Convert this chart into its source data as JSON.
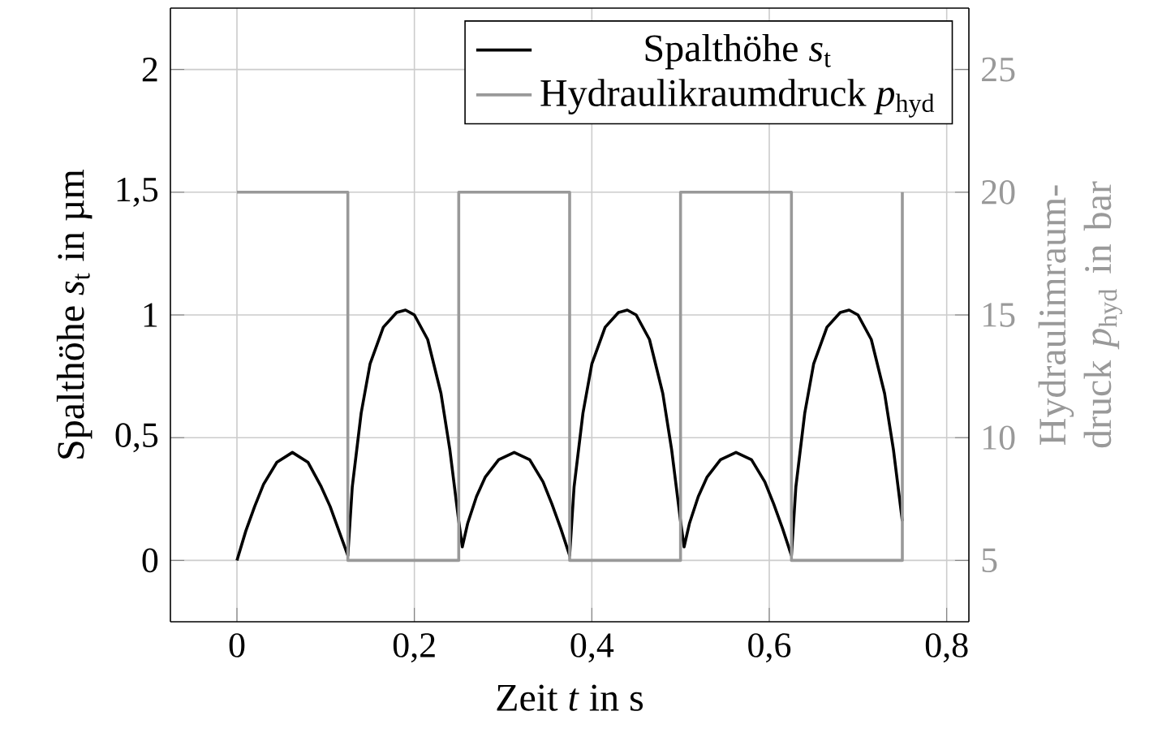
{
  "chart_data": {
    "type": "line",
    "xlabel": "Zeit *t* in s",
    "ylabel": "Spalthöhe *s*$_{t}$ in µm",
    "y2label": "Hydraulimraum-druck *p*$_{hyd}$ in bar",
    "xlim": [
      -0.075,
      0.825
    ],
    "ylim": [
      -0.25,
      2.25
    ],
    "y2lim": [
      2.5,
      27.5
    ],
    "xticks": [
      0,
      {
        "value": 0.2,
        "label": "0,2"
      },
      {
        "value": 0.4,
        "label": "0,4"
      },
      {
        "value": 0.6,
        "label": "0,6"
      },
      {
        "value": 0.8,
        "label": "0,8"
      }
    ],
    "yticks": [
      0,
      {
        "value": 0.5,
        "label": "0,5"
      },
      1,
      {
        "value": 1.5,
        "label": "1,5"
      },
      2
    ],
    "y2ticks": [
      5,
      10,
      15,
      20,
      25
    ],
    "grid": true,
    "legend": "top right",
    "series": [
      {
        "name": "Spalthöhe *s*$_{t}$",
        "color": "#000000",
        "x": [
          0,
          0.01,
          0.02,
          0.03,
          0.045,
          0.0625,
          0.08,
          0.095,
          0.105,
          0.115,
          0.125,
          0.13,
          0.14,
          0.15,
          0.165,
          0.18,
          0.19,
          0.2,
          0.215,
          0.23,
          0.24,
          0.25,
          0.254,
          0.26,
          0.27,
          0.28,
          0.295,
          0.3125,
          0.33,
          0.345,
          0.355,
          0.365,
          0.375,
          0.38,
          0.39,
          0.4,
          0.415,
          0.43,
          0.44,
          0.45,
          0.465,
          0.48,
          0.49,
          0.5,
          0.504,
          0.51,
          0.52,
          0.53,
          0.545,
          0.5625,
          0.58,
          0.595,
          0.605,
          0.615,
          0.625,
          0.63,
          0.64,
          0.65,
          0.665,
          0.68,
          0.69,
          0.7,
          0.715,
          0.73,
          0.74,
          0.75
        ],
        "values": [
          0,
          0.12,
          0.22,
          0.31,
          0.4,
          0.44,
          0.4,
          0.3,
          0.22,
          0.12,
          0.02,
          0.3,
          0.6,
          0.8,
          0.95,
          1.01,
          1.02,
          1.0,
          0.9,
          0.68,
          0.45,
          0.16,
          0.055,
          0.15,
          0.26,
          0.34,
          0.41,
          0.44,
          0.41,
          0.32,
          0.23,
          0.13,
          0.02,
          0.3,
          0.6,
          0.8,
          0.95,
          1.01,
          1.02,
          1.0,
          0.9,
          0.68,
          0.45,
          0.16,
          0.055,
          0.15,
          0.26,
          0.34,
          0.41,
          0.44,
          0.41,
          0.32,
          0.23,
          0.13,
          0.02,
          0.3,
          0.6,
          0.8,
          0.95,
          1.01,
          1.02,
          1.0,
          0.9,
          0.68,
          0.45,
          0.16
        ]
      },
      {
        "name": "Hydraulikraumdruck *p*$_{hyd}$",
        "color": "#999999",
        "axis": "y2",
        "x": [
          0,
          0.125,
          0.125,
          0.25,
          0.25,
          0.375,
          0.375,
          0.5,
          0.5,
          0.625,
          0.625,
          0.75,
          0.75
        ],
        "values": [
          20,
          20,
          5,
          5,
          20,
          20,
          5,
          5,
          20,
          20,
          5,
          5,
          20
        ]
      }
    ]
  }
}
